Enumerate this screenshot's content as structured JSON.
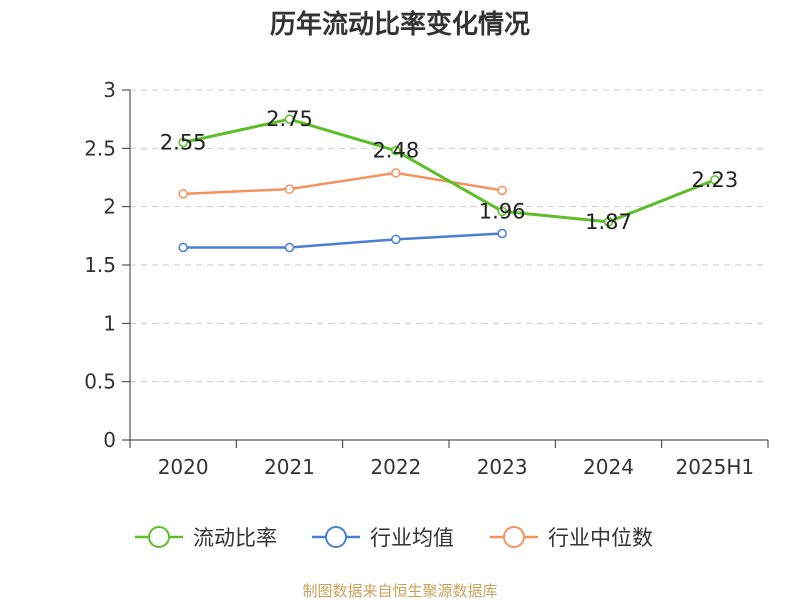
{
  "chart_data": {
    "type": "line",
    "title": "历年流动比率变化情况",
    "categories": [
      "2020",
      "2021",
      "2022",
      "2023",
      "2024",
      "2025H1"
    ],
    "ylim": [
      0,
      3
    ],
    "yticks": [
      "0",
      "0.5",
      "1",
      "1.5",
      "2",
      "2.5",
      "3"
    ],
    "grid": true,
    "legend_position": "bottom",
    "series": [
      {
        "name": "流动比率",
        "color": "#5cbf2a",
        "values": [
          2.55,
          2.75,
          2.48,
          1.96,
          1.87,
          2.23
        ],
        "labels": [
          "2.55",
          "2.75",
          "2.48",
          "1.96",
          "1.87",
          "2.23"
        ]
      },
      {
        "name": "行业均值",
        "color": "#4a7fd6",
        "values": [
          1.65,
          1.65,
          1.72,
          1.77,
          null,
          null
        ]
      },
      {
        "name": "行业中位数",
        "color": "#f5935f",
        "values": [
          2.11,
          2.15,
          2.29,
          2.14,
          null,
          null
        ]
      }
    ],
    "source": "制图数据来自恒生聚源数据库"
  }
}
